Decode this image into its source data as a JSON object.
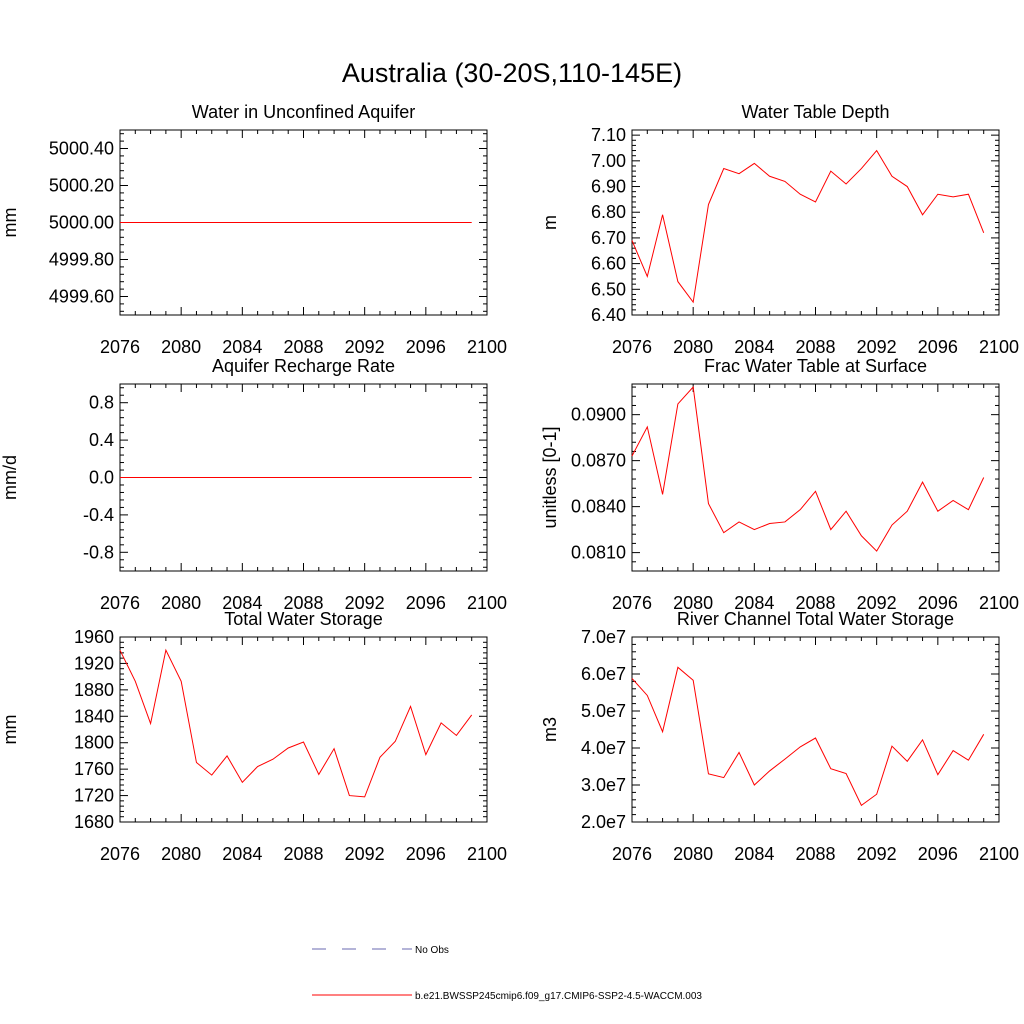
{
  "figure": {
    "title": "Australia (30-20S,110-145E)"
  },
  "legend": {
    "items": [
      {
        "label": "No Obs",
        "color": "#6a6ab0",
        "style": "dashed"
      },
      {
        "label": "b.e21.BWSSP245cmip6.f09_g17.CMIP6-SSP2-4.5-WACCM.003",
        "color": "#ff0000",
        "style": "solid"
      }
    ]
  },
  "chart_data": [
    {
      "type": "line",
      "title": "Water in Unconfined Aquifer",
      "xlabel": "",
      "ylabel": "mm",
      "xlim": [
        2076,
        2100
      ],
      "ylim": [
        4999.5,
        5000.5
      ],
      "xticks": [
        2076,
        2080,
        2084,
        2088,
        2092,
        2096,
        2100
      ],
      "yticks": [
        4999.6,
        4999.8,
        5000.0,
        5000.2,
        5000.4
      ],
      "ytick_labels": [
        "4999.60",
        "4999.80",
        "5000.00",
        "5000.20",
        "5000.40"
      ],
      "x": [
        2076,
        2077,
        2078,
        2079,
        2080,
        2081,
        2082,
        2083,
        2084,
        2085,
        2086,
        2087,
        2088,
        2089,
        2090,
        2091,
        2092,
        2093,
        2094,
        2095,
        2096,
        2097,
        2098,
        2099
      ],
      "series": [
        {
          "color": "#ff0000",
          "values": [
            5000,
            5000,
            5000,
            5000,
            5000,
            5000,
            5000,
            5000,
            5000,
            5000,
            5000,
            5000,
            5000,
            5000,
            5000,
            5000,
            5000,
            5000,
            5000,
            5000,
            5000,
            5000,
            5000,
            5000
          ]
        }
      ]
    },
    {
      "type": "line",
      "title": "Water Table Depth",
      "xlabel": "",
      "ylabel": "m",
      "xlim": [
        2076,
        2100
      ],
      "ylim": [
        6.4,
        7.12
      ],
      "xticks": [
        2076,
        2080,
        2084,
        2088,
        2092,
        2096,
        2100
      ],
      "yticks": [
        6.4,
        6.5,
        6.6,
        6.7,
        6.8,
        6.9,
        7.0,
        7.1
      ],
      "ytick_labels": [
        "6.40",
        "6.50",
        "6.60",
        "6.70",
        "6.80",
        "6.90",
        "7.00",
        "7.10"
      ],
      "x": [
        2076,
        2077,
        2078,
        2079,
        2080,
        2081,
        2082,
        2083,
        2084,
        2085,
        2086,
        2087,
        2088,
        2089,
        2090,
        2091,
        2092,
        2093,
        2094,
        2095,
        2096,
        2097,
        2098,
        2099
      ],
      "series": [
        {
          "color": "#ff0000",
          "values": [
            6.69,
            6.55,
            6.79,
            6.53,
            6.45,
            6.83,
            6.97,
            6.95,
            6.99,
            6.94,
            6.92,
            6.87,
            6.84,
            6.96,
            6.91,
            6.97,
            7.04,
            6.94,
            6.9,
            6.79,
            6.87,
            6.86,
            6.87,
            6.72
          ]
        }
      ]
    },
    {
      "type": "line",
      "title": "Aquifer Recharge Rate",
      "xlabel": "",
      "ylabel": "mm/d",
      "xlim": [
        2076,
        2100
      ],
      "ylim": [
        -1.0,
        1.0
      ],
      "xticks": [
        2076,
        2080,
        2084,
        2088,
        2092,
        2096,
        2100
      ],
      "yticks": [
        -0.8,
        -0.4,
        0.0,
        0.4,
        0.8
      ],
      "ytick_labels": [
        "-0.8",
        "-0.4",
        "0.0",
        "0.4",
        "0.8"
      ],
      "x": [
        2076,
        2077,
        2078,
        2079,
        2080,
        2081,
        2082,
        2083,
        2084,
        2085,
        2086,
        2087,
        2088,
        2089,
        2090,
        2091,
        2092,
        2093,
        2094,
        2095,
        2096,
        2097,
        2098,
        2099
      ],
      "series": [
        {
          "color": "#ff0000",
          "values": [
            0,
            0,
            0,
            0,
            0,
            0,
            0,
            0,
            0,
            0,
            0,
            0,
            0,
            0,
            0,
            0,
            0,
            0,
            0,
            0,
            0,
            0,
            0,
            0
          ]
        }
      ]
    },
    {
      "type": "line",
      "title": "Frac Water Table at Surface",
      "xlabel": "",
      "ylabel": "unitless [0-1]",
      "xlim": [
        2076,
        2100
      ],
      "ylim": [
        0.0798,
        0.092
      ],
      "xticks": [
        2076,
        2080,
        2084,
        2088,
        2092,
        2096,
        2100
      ],
      "yticks": [
        0.081,
        0.084,
        0.087,
        0.09
      ],
      "ytick_labels": [
        "0.0810",
        "0.0840",
        "0.0870",
        "0.0900"
      ],
      "x": [
        2076,
        2077,
        2078,
        2079,
        2080,
        2081,
        2082,
        2083,
        2084,
        2085,
        2086,
        2087,
        2088,
        2089,
        2090,
        2091,
        2092,
        2093,
        2094,
        2095,
        2096,
        2097,
        2098,
        2099
      ],
      "series": [
        {
          "color": "#ff0000",
          "values": [
            0.0873,
            0.0892,
            0.0848,
            0.0907,
            0.0918,
            0.0842,
            0.0823,
            0.083,
            0.0825,
            0.0829,
            0.083,
            0.0838,
            0.085,
            0.0825,
            0.0837,
            0.0821,
            0.0811,
            0.0828,
            0.0837,
            0.0856,
            0.0837,
            0.0844,
            0.0838,
            0.0859
          ]
        }
      ]
    },
    {
      "type": "line",
      "title": "Total Water Storage",
      "xlabel": "",
      "ylabel": "mm",
      "xlim": [
        2076,
        2100
      ],
      "ylim": [
        1680,
        1960
      ],
      "xticks": [
        2076,
        2080,
        2084,
        2088,
        2092,
        2096,
        2100
      ],
      "yticks": [
        1680,
        1720,
        1760,
        1800,
        1840,
        1880,
        1920,
        1960
      ],
      "ytick_labels": [
        "1680",
        "1720",
        "1760",
        "1800",
        "1840",
        "1880",
        "1920",
        "1960"
      ],
      "x": [
        2076,
        2077,
        2078,
        2079,
        2080,
        2081,
        2082,
        2083,
        2084,
        2085,
        2086,
        2087,
        2088,
        2089,
        2090,
        2091,
        2092,
        2093,
        2094,
        2095,
        2096,
        2097,
        2098,
        2099
      ],
      "series": [
        {
          "color": "#ff0000",
          "values": [
            1940,
            1893,
            1829,
            1940,
            1893,
            1770,
            1751,
            1780,
            1740,
            1764,
            1775,
            1792,
            1801,
            1752,
            1791,
            1720,
            1718,
            1778,
            1802,
            1855,
            1782,
            1830,
            1811,
            1842
          ]
        }
      ]
    },
    {
      "type": "line",
      "title": "River Channel Total Water Storage",
      "xlabel": "",
      "ylabel": "m3",
      "xlim": [
        2076,
        2100
      ],
      "ylim": [
        20000000,
        70000000
      ],
      "xticks": [
        2076,
        2080,
        2084,
        2088,
        2092,
        2096,
        2100
      ],
      "yticks": [
        20000000,
        30000000,
        40000000,
        50000000,
        60000000,
        70000000
      ],
      "ytick_labels": [
        "2.0e7",
        "3.0e7",
        "4.0e7",
        "5.0e7",
        "6.0e7",
        "7.0e7"
      ],
      "x": [
        2076,
        2077,
        2078,
        2079,
        2080,
        2081,
        2082,
        2083,
        2084,
        2085,
        2086,
        2087,
        2088,
        2089,
        2090,
        2091,
        2092,
        2093,
        2094,
        2095,
        2096,
        2097,
        2098,
        2099
      ],
      "series": [
        {
          "color": "#ff0000",
          "values": [
            58800000,
            54200000,
            44400000,
            61800000,
            58300000,
            33000000,
            32000000,
            38800000,
            30000000,
            33800000,
            37000000,
            40300000,
            42700000,
            34400000,
            33100000,
            24500000,
            27500000,
            40500000,
            36400000,
            42200000,
            32800000,
            39300000,
            36700000,
            43700000
          ]
        }
      ]
    }
  ]
}
